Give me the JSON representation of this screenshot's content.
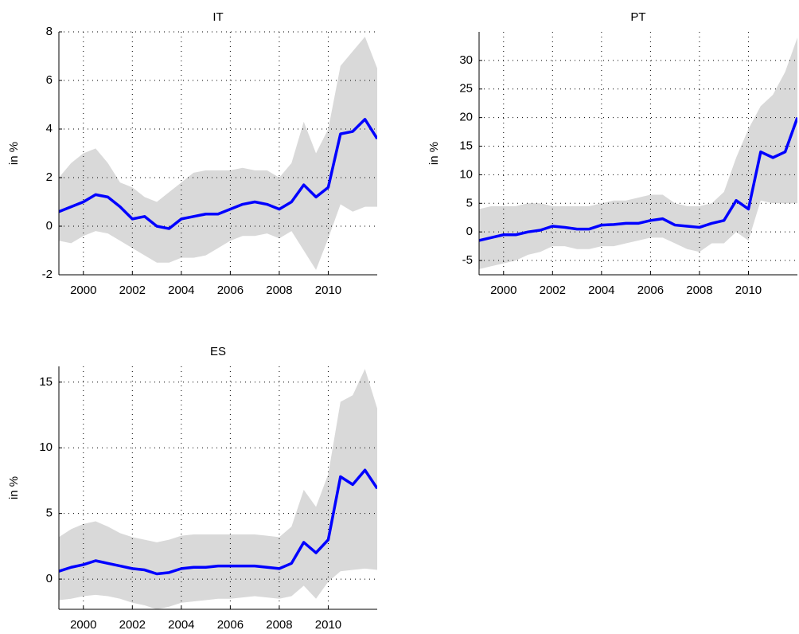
{
  "chart_data": [
    {
      "type": "band-line",
      "title": "IT",
      "y_label": "in %",
      "x": [
        1999,
        1999.5,
        2000,
        2000.5,
        2001,
        2001.5,
        2002,
        2002.5,
        2003,
        2003.5,
        2004,
        2004.5,
        2005,
        2005.5,
        2006,
        2006.5,
        2007,
        2007.5,
        2008,
        2008.5,
        2009,
        2009.5,
        2010,
        2010.5,
        2011,
        2011.5,
        2012
      ],
      "line": {
        "color": "#0000ff",
        "values": [
          0.6,
          0.8,
          1.0,
          1.3,
          1.2,
          0.8,
          0.3,
          0.4,
          0.0,
          -0.1,
          0.3,
          0.4,
          0.5,
          0.5,
          0.7,
          0.9,
          1.0,
          0.9,
          0.7,
          1.0,
          1.7,
          1.2,
          1.6,
          3.8,
          3.9,
          4.4,
          3.6
        ]
      },
      "band": {
        "color": "#d9d9d9",
        "upper": [
          2.0,
          2.6,
          3.0,
          3.2,
          2.6,
          1.8,
          1.6,
          1.2,
          1.0,
          1.4,
          1.8,
          2.2,
          2.3,
          2.3,
          2.3,
          2.4,
          2.3,
          2.3,
          2.0,
          2.6,
          4.3,
          3.0,
          4.0,
          6.6,
          7.2,
          7.8,
          6.5
        ],
        "lower": [
          -0.6,
          -0.7,
          -0.4,
          -0.2,
          -0.3,
          -0.6,
          -0.9,
          -1.2,
          -1.5,
          -1.5,
          -1.3,
          -1.3,
          -1.2,
          -0.9,
          -0.6,
          -0.4,
          -0.4,
          -0.3,
          -0.5,
          -0.2,
          -1.0,
          -1.8,
          -0.5,
          0.9,
          0.6,
          0.8,
          0.8
        ]
      },
      "xlim": [
        1999,
        2012
      ],
      "xticks": [
        2000,
        2002,
        2004,
        2006,
        2008,
        2010
      ],
      "ylim": [
        -2,
        8
      ],
      "yticks": [
        -2,
        0,
        2,
        4,
        6,
        8
      ],
      "grid": true
    },
    {
      "type": "band-line",
      "title": "PT",
      "y_label": "in %",
      "x": [
        1999,
        1999.5,
        2000,
        2000.5,
        2001,
        2001.5,
        2002,
        2002.5,
        2003,
        2003.5,
        2004,
        2004.5,
        2005,
        2005.5,
        2006,
        2006.5,
        2007,
        2007.5,
        2008,
        2008.5,
        2009,
        2009.5,
        2010,
        2010.5,
        2011,
        2011.5,
        2012
      ],
      "line": {
        "color": "#0000ff",
        "values": [
          -1.5,
          -1,
          -0.5,
          -0.5,
          0,
          0.3,
          1.0,
          0.8,
          0.5,
          0.5,
          1.2,
          1.3,
          1.5,
          1.5,
          2.0,
          2.3,
          1.2,
          1.0,
          0.8,
          1.5,
          2.0,
          5.5,
          4.0,
          14,
          13,
          14,
          20
        ]
      },
      "band": {
        "color": "#d9d9d9",
        "upper": [
          4.0,
          4.5,
          4.5,
          4.5,
          5.0,
          5.0,
          4.5,
          4.5,
          4.5,
          4.5,
          5.0,
          5.5,
          5.5,
          6.0,
          6.5,
          6.5,
          5.0,
          4.5,
          4.5,
          5.0,
          7.0,
          13,
          18,
          22,
          24,
          28,
          34
        ],
        "lower": [
          -6.5,
          -6,
          -5.5,
          -5,
          -4,
          -3.5,
          -2.5,
          -2.5,
          -3,
          -3,
          -2.5,
          -2.5,
          -2,
          -1.5,
          -1,
          -1,
          -2,
          -3,
          -3.5,
          -2,
          -2,
          0,
          -1.5,
          5.5,
          5,
          5,
          5
        ]
      },
      "xlim": [
        1999,
        2012
      ],
      "xticks": [
        2000,
        2002,
        2004,
        2006,
        2008,
        2010
      ],
      "ylim": [
        -7.5,
        35
      ],
      "yticks": [
        -5,
        0,
        5,
        10,
        15,
        20,
        25,
        30
      ],
      "grid": true
    },
    {
      "type": "band-line",
      "title": "ES",
      "y_label": "in %",
      "x": [
        1999,
        1999.5,
        2000,
        2000.5,
        2001,
        2001.5,
        2002,
        2002.5,
        2003,
        2003.5,
        2004,
        2004.5,
        2005,
        2005.5,
        2006,
        2006.5,
        2007,
        2007.5,
        2008,
        2008.5,
        2009,
        2009.5,
        2010,
        2010.5,
        2011,
        2011.5,
        2012
      ],
      "line": {
        "color": "#0000ff",
        "values": [
          0.6,
          0.9,
          1.1,
          1.4,
          1.2,
          1.0,
          0.8,
          0.7,
          0.4,
          0.5,
          0.8,
          0.9,
          0.9,
          1.0,
          1.0,
          1.0,
          1.0,
          0.9,
          0.8,
          1.2,
          2.8,
          2.0,
          3.0,
          7.8,
          7.2,
          8.3,
          6.9
        ]
      },
      "band": {
        "color": "#d9d9d9",
        "upper": [
          3.2,
          3.8,
          4.2,
          4.4,
          4.0,
          3.5,
          3.2,
          3.0,
          2.8,
          3.0,
          3.3,
          3.4,
          3.4,
          3.4,
          3.4,
          3.4,
          3.4,
          3.3,
          3.2,
          4.0,
          6.8,
          5.5,
          8.0,
          13.5,
          14.0,
          16.0,
          13.0
        ],
        "lower": [
          -1.6,
          -1.5,
          -1.3,
          -1.2,
          -1.3,
          -1.5,
          -1.8,
          -2.0,
          -2.3,
          -2.1,
          -1.8,
          -1.7,
          -1.6,
          -1.5,
          -1.5,
          -1.4,
          -1.3,
          -1.4,
          -1.5,
          -1.3,
          -0.5,
          -1.5,
          -0.2,
          0.6,
          0.7,
          0.8,
          0.7
        ]
      },
      "xlim": [
        1999,
        2012
      ],
      "xticks": [
        2000,
        2002,
        2004,
        2006,
        2008,
        2010
      ],
      "ylim": [
        -2.3,
        16.2
      ],
      "yticks": [
        0,
        5,
        10,
        15
      ],
      "grid": true
    }
  ]
}
